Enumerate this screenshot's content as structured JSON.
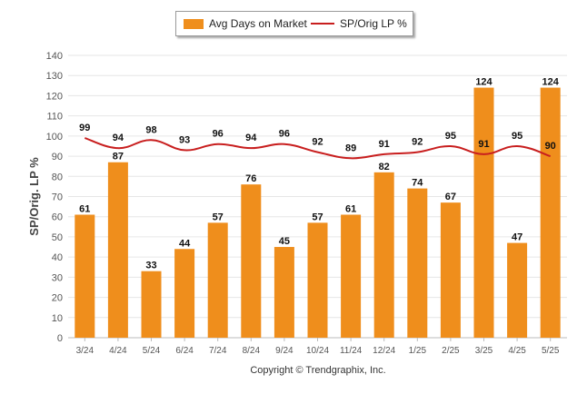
{
  "legend": {
    "bar_label": "Avg Days on Market",
    "line_label": "SP/Orig LP %"
  },
  "copyright": "Copyright © Trendgraphix, Inc.",
  "colors": {
    "bar": "#ef8e1c",
    "line": "#c81e1e",
    "grid": "#e6e6e6",
    "axis_text": "#555555"
  },
  "chart_data": {
    "type": "bar",
    "categories": [
      "3/24",
      "4/24",
      "5/24",
      "6/24",
      "7/24",
      "8/24",
      "9/24",
      "10/24",
      "11/24",
      "12/24",
      "1/25",
      "2/25",
      "3/25",
      "4/25",
      "5/25"
    ],
    "series": [
      {
        "name": "Avg Days on Market",
        "type": "bar",
        "values": [
          61,
          87,
          33,
          44,
          57,
          76,
          45,
          57,
          61,
          82,
          74,
          67,
          124,
          47,
          124
        ]
      },
      {
        "name": "SP/Orig LP %",
        "type": "line",
        "values": [
          99,
          94,
          98,
          93,
          96,
          94,
          96,
          92,
          89,
          91,
          92,
          95,
          91,
          95,
          90
        ]
      }
    ],
    "ylabel": "SP/Orig. LP %",
    "xlabel": "",
    "ylim": [
      0,
      140
    ],
    "yticks": [
      0,
      10,
      20,
      30,
      40,
      50,
      60,
      70,
      80,
      90,
      100,
      110,
      120,
      130,
      140
    ],
    "grid": true,
    "legend_position": "top"
  }
}
